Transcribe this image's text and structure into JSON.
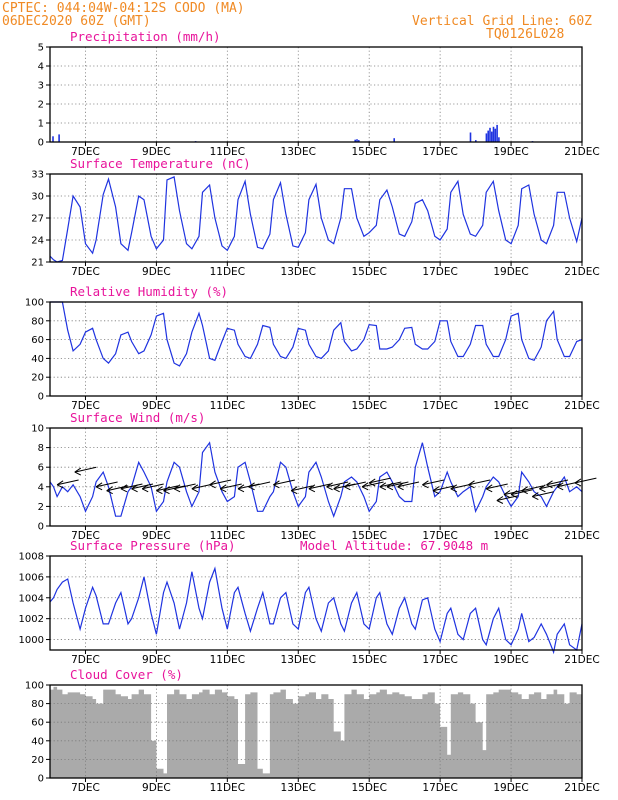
{
  "header": {
    "left_line1": "CPTEC:   044:04W-04:12S   CODO (MA)",
    "left_line2": "06DEC2020 60Z (GMT)",
    "right_line1": "Vertical Grid Line: 60Z",
    "right_line2": "TQ0126L028"
  },
  "colors": {
    "series": "#1f33e0",
    "cloud": "#aaaaaa",
    "title": "#e8149b",
    "header": "#f08a24"
  },
  "x_axis": {
    "labels": [
      "7DEC",
      "9DEC",
      "11DEC",
      "13DEC",
      "15DEC",
      "17DEC",
      "19DEC",
      "21DEC"
    ],
    "label_days": [
      7,
      9,
      11,
      13,
      15,
      17,
      19,
      21
    ],
    "range_days": [
      6.0,
      21.0
    ]
  },
  "chart_data": [
    {
      "id": "precip",
      "type": "bar",
      "title": "Precipitation (mm/h)",
      "unit_note": "",
      "ylim": [
        0,
        5
      ],
      "yticks": [
        0,
        1,
        2,
        3,
        4,
        5
      ],
      "x": [
        6.08,
        6.25,
        10.1,
        14.6,
        14.65,
        14.7,
        15.7,
        17.85,
        18.0,
        18.3,
        18.35,
        18.4,
        18.45,
        18.5,
        18.55,
        18.6,
        18.65,
        19.6
      ],
      "values": [
        0.3,
        0.4,
        0.05,
        0.12,
        0.15,
        0.1,
        0.2,
        0.5,
        0.1,
        0.45,
        0.6,
        0.75,
        0.55,
        0.8,
        0.7,
        0.9,
        0.25,
        0.05
      ]
    },
    {
      "id": "temp",
      "type": "line",
      "title": "Surface Temperature (nC)",
      "ylim": [
        21,
        33
      ],
      "yticks": [
        21,
        24,
        27,
        30,
        33
      ],
      "x": [
        6.0,
        6.1,
        6.2,
        6.35,
        6.5,
        6.65,
        6.85,
        7.0,
        7.2,
        7.3,
        7.5,
        7.65,
        7.85,
        8.0,
        8.2,
        8.3,
        8.5,
        8.65,
        8.85,
        9.0,
        9.2,
        9.3,
        9.5,
        9.65,
        9.85,
        10.0,
        10.2,
        10.3,
        10.5,
        10.65,
        10.85,
        11.0,
        11.2,
        11.3,
        11.5,
        11.65,
        11.85,
        12.0,
        12.2,
        12.3,
        12.5,
        12.65,
        12.85,
        13.0,
        13.2,
        13.3,
        13.5,
        13.65,
        13.85,
        14.0,
        14.2,
        14.3,
        14.5,
        14.65,
        14.85,
        15.0,
        15.2,
        15.3,
        15.5,
        15.65,
        15.85,
        16.0,
        16.2,
        16.3,
        16.5,
        16.65,
        16.85,
        17.0,
        17.2,
        17.3,
        17.5,
        17.65,
        17.85,
        18.0,
        18.2,
        18.3,
        18.5,
        18.65,
        18.85,
        19.0,
        19.2,
        19.3,
        19.5,
        19.65,
        19.85,
        20.0,
        20.2,
        20.3,
        20.5,
        20.65,
        20.85,
        21.0
      ],
      "values": [
        21.8,
        21.3,
        21.0,
        21.2,
        25.5,
        30.0,
        28.5,
        23.5,
        22.2,
        24.0,
        30.2,
        32.3,
        28.5,
        23.5,
        22.6,
        25.0,
        30.0,
        29.5,
        24.5,
        22.8,
        24.0,
        32.2,
        32.6,
        28.0,
        23.5,
        22.8,
        24.5,
        30.5,
        31.5,
        27.0,
        23.2,
        22.6,
        24.5,
        29.5,
        32.0,
        27.5,
        23.0,
        22.8,
        24.8,
        29.5,
        31.8,
        27.5,
        23.2,
        23.0,
        25.0,
        29.5,
        31.6,
        27.0,
        24.0,
        23.5,
        27.0,
        31.0,
        31.0,
        27.0,
        24.5,
        25.0,
        26.0,
        29.5,
        30.8,
        28.5,
        24.8,
        24.5,
        26.5,
        29.0,
        29.5,
        28.0,
        24.5,
        24.0,
        25.5,
        30.5,
        32.0,
        27.5,
        24.8,
        24.5,
        26.0,
        30.5,
        32.0,
        28.0,
        24.0,
        23.5,
        26.0,
        31.0,
        31.5,
        27.5,
        24.0,
        23.5,
        26.0,
        30.5,
        30.5,
        27.0,
        23.8,
        27.0
      ]
    },
    {
      "id": "rh",
      "type": "line",
      "title": "Relative Humidity (%)",
      "ylim": [
        0,
        100
      ],
      "yticks": [
        0,
        20,
        40,
        60,
        80,
        100
      ],
      "x": [
        6.0,
        6.1,
        6.2,
        6.35,
        6.5,
        6.65,
        6.85,
        7.0,
        7.2,
        7.3,
        7.5,
        7.65,
        7.85,
        8.0,
        8.2,
        8.3,
        8.5,
        8.65,
        8.85,
        9.0,
        9.2,
        9.3,
        9.5,
        9.65,
        9.85,
        10.0,
        10.2,
        10.3,
        10.5,
        10.65,
        10.85,
        11.0,
        11.2,
        11.3,
        11.5,
        11.65,
        11.85,
        12.0,
        12.2,
        12.3,
        12.5,
        12.65,
        12.85,
        13.0,
        13.2,
        13.3,
        13.5,
        13.65,
        13.85,
        14.0,
        14.2,
        14.3,
        14.5,
        14.65,
        14.85,
        15.0,
        15.2,
        15.3,
        15.5,
        15.65,
        15.85,
        16.0,
        16.2,
        16.3,
        16.5,
        16.65,
        16.85,
        17.0,
        17.2,
        17.3,
        17.5,
        17.65,
        17.85,
        18.0,
        18.2,
        18.3,
        18.5,
        18.65,
        18.85,
        19.0,
        19.2,
        19.3,
        19.5,
        19.65,
        19.85,
        20.0,
        20.2,
        20.3,
        20.5,
        20.65,
        20.85,
        21.0
      ],
      "values": [
        100,
        100,
        100,
        100,
        70,
        48,
        55,
        68,
        72,
        60,
        40,
        35,
        45,
        65,
        68,
        58,
        45,
        48,
        65,
        85,
        88,
        60,
        35,
        32,
        45,
        68,
        88,
        75,
        40,
        38,
        58,
        72,
        70,
        55,
        42,
        40,
        55,
        75,
        73,
        55,
        42,
        40,
        52,
        72,
        70,
        55,
        42,
        40,
        48,
        70,
        78,
        58,
        48,
        50,
        60,
        76,
        75,
        50,
        50,
        52,
        60,
        72,
        73,
        55,
        50,
        50,
        58,
        80,
        80,
        58,
        42,
        42,
        55,
        75,
        75,
        55,
        42,
        42,
        60,
        85,
        88,
        60,
        40,
        38,
        52,
        80,
        90,
        60,
        42,
        42,
        58,
        60
      ]
    },
    {
      "id": "wind",
      "type": "line",
      "title": "Surface Wind (m/s)",
      "ylim": [
        0,
        10
      ],
      "yticks": [
        0,
        2,
        4,
        6,
        8,
        10
      ],
      "x": [
        6.0,
        6.1,
        6.2,
        6.35,
        6.5,
        6.65,
        6.85,
        7.0,
        7.2,
        7.3,
        7.5,
        7.65,
        7.85,
        8.0,
        8.2,
        8.3,
        8.5,
        8.65,
        8.85,
        9.0,
        9.2,
        9.3,
        9.5,
        9.65,
        9.85,
        10.0,
        10.2,
        10.3,
        10.5,
        10.65,
        10.85,
        11.0,
        11.2,
        11.3,
        11.5,
        11.65,
        11.85,
        12.0,
        12.2,
        12.3,
        12.5,
        12.65,
        12.85,
        13.0,
        13.2,
        13.3,
        13.5,
        13.65,
        13.85,
        14.0,
        14.2,
        14.3,
        14.5,
        14.65,
        14.85,
        15.0,
        15.2,
        15.3,
        15.5,
        15.65,
        15.85,
        16.0,
        16.2,
        16.3,
        16.5,
        16.65,
        16.85,
        17.0,
        17.2,
        17.3,
        17.5,
        17.65,
        17.85,
        18.0,
        18.2,
        18.3,
        18.5,
        18.65,
        18.85,
        19.0,
        19.2,
        19.3,
        19.5,
        19.65,
        19.85,
        20.0,
        20.2,
        20.3,
        20.5,
        20.65,
        20.85,
        21.0
      ],
      "values": [
        4.5,
        4.0,
        3.0,
        4.0,
        3.5,
        4.2,
        3.0,
        1.5,
        3.0,
        4.5,
        5.5,
        4.0,
        1.0,
        1.0,
        3.5,
        4.0,
        6.5,
        5.5,
        4.0,
        1.5,
        2.5,
        4.5,
        6.5,
        6.0,
        3.5,
        2.0,
        3.5,
        7.5,
        8.5,
        5.5,
        3.5,
        2.5,
        3.0,
        6.0,
        6.5,
        4.5,
        1.5,
        1.5,
        3.0,
        3.5,
        6.5,
        6.0,
        3.5,
        2.0,
        3.0,
        5.5,
        6.5,
        5.0,
        2.5,
        1.0,
        3.0,
        4.5,
        5.0,
        4.5,
        3.0,
        1.5,
        2.5,
        5.0,
        5.5,
        4.5,
        3.0,
        2.5,
        2.5,
        6.0,
        8.5,
        6.0,
        3.0,
        3.5,
        5.5,
        4.5,
        3.0,
        3.5,
        4.0,
        1.5,
        3.0,
        4.0,
        5.0,
        4.5,
        3.0,
        2.0,
        3.0,
        5.5,
        4.5,
        3.5,
        3.0,
        2.0,
        3.5,
        4.0,
        5.0,
        3.5,
        4.0,
        3.5
      ],
      "arrows_x": [
        6.2,
        6.7,
        7.3,
        7.6,
        8.0,
        8.3,
        8.6,
        9.0,
        9.2,
        9.5,
        10.0,
        10.5,
        10.8,
        11.3,
        11.6,
        12.3,
        12.8,
        13.3,
        13.8,
        14.0,
        14.3,
        14.8,
        15.0,
        15.3,
        15.5,
        15.8,
        16.5,
        16.8,
        17.3,
        17.8,
        18.3,
        18.6,
        18.8,
        19.0,
        19.3,
        19.6,
        19.8,
        20.0,
        20.3,
        20.8
      ],
      "arrows_value": [
        4.2,
        5.5,
        4.0,
        3.6,
        3.8,
        3.8,
        3.8,
        3.6,
        3.6,
        3.8,
        3.8,
        4.2,
        3.8,
        3.8,
        4.0,
        4.2,
        3.6,
        3.8,
        4.0,
        3.8,
        4.0,
        4.0,
        4.4,
        4.0,
        4.0,
        4.0,
        4.2,
        3.6,
        3.8,
        4.2,
        3.8,
        2.6,
        3.2,
        3.2,
        3.6,
        3.0,
        3.8,
        4.2,
        4.0,
        4.4
      ]
    },
    {
      "id": "pressure",
      "type": "line",
      "title": "Surface Pressure (hPa)",
      "annotation": "Model Altitude: 67.9048 m",
      "ylim": [
        999,
        1008
      ],
      "yticks": [
        1000,
        1002,
        1004,
        1006,
        1008
      ],
      "x": [
        6.0,
        6.1,
        6.2,
        6.35,
        6.5,
        6.65,
        6.85,
        7.0,
        7.2,
        7.3,
        7.5,
        7.65,
        7.85,
        8.0,
        8.2,
        8.3,
        8.5,
        8.65,
        8.85,
        9.0,
        9.2,
        9.3,
        9.5,
        9.65,
        9.85,
        10.0,
        10.2,
        10.3,
        10.5,
        10.65,
        10.85,
        11.0,
        11.2,
        11.3,
        11.5,
        11.65,
        11.85,
        12.0,
        12.2,
        12.3,
        12.5,
        12.65,
        12.85,
        13.0,
        13.2,
        13.3,
        13.5,
        13.65,
        13.85,
        14.0,
        14.2,
        14.3,
        14.5,
        14.65,
        14.85,
        15.0,
        15.2,
        15.3,
        15.5,
        15.65,
        15.85,
        16.0,
        16.2,
        16.3,
        16.5,
        16.65,
        16.85,
        17.0,
        17.2,
        17.3,
        17.5,
        17.65,
        17.85,
        18.0,
        18.2,
        18.3,
        18.5,
        18.65,
        18.85,
        19.0,
        19.2,
        19.3,
        19.5,
        19.65,
        19.85,
        20.0,
        20.2,
        20.3,
        20.5,
        20.65,
        20.85,
        21.0
      ],
      "values": [
        1003.6,
        1004.0,
        1004.8,
        1005.5,
        1005.8,
        1003.5,
        1001.0,
        1003.0,
        1005.0,
        1004.2,
        1001.5,
        1001.5,
        1003.5,
        1004.5,
        1001.5,
        1002.0,
        1004.0,
        1006.0,
        1002.5,
        1000.5,
        1004.5,
        1005.5,
        1003.5,
        1001.0,
        1003.5,
        1006.5,
        1003.0,
        1002.0,
        1005.5,
        1006.8,
        1003.0,
        1001.0,
        1004.5,
        1005.0,
        1002.5,
        1000.8,
        1003.0,
        1004.5,
        1001.5,
        1001.5,
        1004.0,
        1004.5,
        1001.5,
        1001.0,
        1004.5,
        1005.0,
        1002.0,
        1000.8,
        1003.5,
        1004.0,
        1001.5,
        1000.8,
        1003.5,
        1004.5,
        1001.5,
        1001.0,
        1004.0,
        1004.5,
        1001.5,
        1000.5,
        1003.0,
        1004.0,
        1001.5,
        1001.0,
        1003.8,
        1004.0,
        1001.0,
        999.8,
        1002.5,
        1003.0,
        1000.5,
        1000.0,
        1002.5,
        1003.0,
        1000.0,
        999.5,
        1002.0,
        1003.0,
        1000.0,
        999.5,
        1001.0,
        1002.5,
        999.8,
        1000.2,
        1001.5,
        1000.5,
        998.8,
        1000.5,
        1001.5,
        999.5,
        999.0,
        1001.5
      ]
    },
    {
      "id": "cloud",
      "type": "area",
      "title": "Cloud Cover (%)",
      "ylim": [
        0,
        100
      ],
      "yticks": [
        0,
        20,
        40,
        60,
        80,
        100
      ],
      "x": [
        6.0,
        6.1,
        6.2,
        6.35,
        6.5,
        6.65,
        6.85,
        7.0,
        7.2,
        7.3,
        7.5,
        7.65,
        7.85,
        8.0,
        8.2,
        8.3,
        8.5,
        8.65,
        8.85,
        9.0,
        9.2,
        9.3,
        9.5,
        9.65,
        9.85,
        10.0,
        10.2,
        10.3,
        10.5,
        10.65,
        10.85,
        11.0,
        11.2,
        11.3,
        11.5,
        11.65,
        11.85,
        12.0,
        12.2,
        12.3,
        12.5,
        12.65,
        12.85,
        13.0,
        13.2,
        13.3,
        13.5,
        13.65,
        13.85,
        14.0,
        14.2,
        14.3,
        14.5,
        14.65,
        14.85,
        15.0,
        15.2,
        15.3,
        15.5,
        15.65,
        15.85,
        16.0,
        16.2,
        16.3,
        16.5,
        16.65,
        16.85,
        17.0,
        17.2,
        17.3,
        17.5,
        17.65,
        17.85,
        18.0,
        18.2,
        18.3,
        18.5,
        18.65,
        18.85,
        19.0,
        19.2,
        19.3,
        19.5,
        19.65,
        19.85,
        20.0,
        20.2,
        20.3,
        20.5,
        20.65,
        20.85,
        21.0
      ],
      "values": [
        95,
        98,
        95,
        90,
        92,
        92,
        90,
        88,
        85,
        80,
        95,
        95,
        90,
        88,
        85,
        90,
        95,
        90,
        40,
        10,
        5,
        90,
        95,
        90,
        85,
        90,
        92,
        95,
        90,
        95,
        92,
        88,
        85,
        15,
        90,
        92,
        10,
        5,
        90,
        92,
        95,
        85,
        80,
        88,
        90,
        92,
        85,
        90,
        85,
        50,
        40,
        90,
        95,
        90,
        85,
        90,
        92,
        95,
        90,
        92,
        90,
        88,
        85,
        85,
        90,
        92,
        80,
        55,
        25,
        90,
        92,
        90,
        80,
        60,
        30,
        90,
        92,
        95,
        95,
        92,
        90,
        85,
        90,
        92,
        85,
        90,
        95,
        90,
        80,
        92,
        90,
        95
      ]
    }
  ]
}
